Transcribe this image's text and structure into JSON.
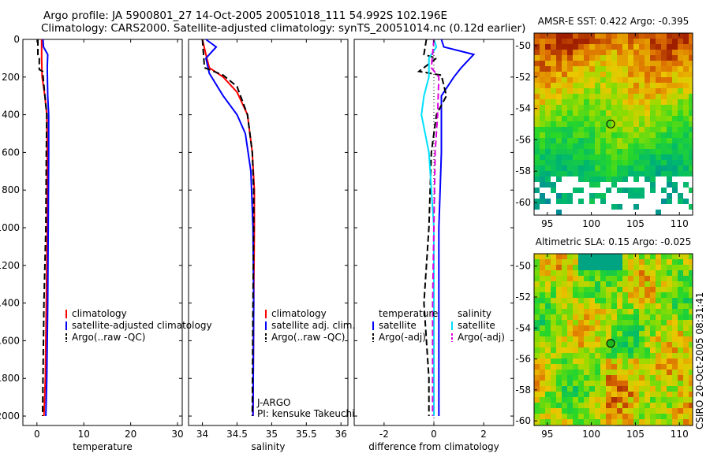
{
  "header": {
    "line1": "Argo profile: JA 5900801_27 14-Oct-2005 20051018_111 54.992S 102.196E",
    "line2": "Climatology: CARS2000. Satellite-adjusted climatology: synTS_20051014.nc (0.12d earlier)"
  },
  "side_stamp": "CSIRO 20-Oct-2005 08:31:41",
  "colors": {
    "climatology": "#ff0000",
    "satellite": "#0000ff",
    "argo": "#000000",
    "sal_satellite": "#00e0ff",
    "sal_argo": "#dd00dd"
  },
  "chart_data": [
    {
      "id": "temperature",
      "type": "line",
      "xlabel": "temperature",
      "ylabel": "",
      "xlim": [
        -3,
        31
      ],
      "ylim": [
        2050,
        0
      ],
      "xticks": [
        0,
        10,
        20,
        30
      ],
      "xtick_labels": [
        "0",
        "10",
        "20",
        "30"
      ],
      "yticks": [
        0,
        200,
        400,
        600,
        800,
        1000,
        1200,
        1400,
        1600,
        1800,
        2000
      ],
      "ytick_labels": [
        "0",
        "200",
        "400",
        "600",
        "800",
        "1000",
        "1200",
        "1400",
        "1600",
        "1800",
        "2000"
      ],
      "legend": [
        "climatology",
        "satellite-adjusted climatology",
        "Argo(..raw -QC)"
      ],
      "series": [
        {
          "name": "climatology",
          "color": "#ff0000",
          "dash": "",
          "points": [
            [
              1.0,
              0
            ],
            [
              1.0,
              100
            ],
            [
              1.1,
              200
            ],
            [
              1.7,
              300
            ],
            [
              2.1,
              400
            ],
            [
              2.2,
              600
            ],
            [
              2.2,
              1000
            ],
            [
              2.0,
              1400
            ],
            [
              1.8,
              1800
            ],
            [
              1.5,
              2000
            ]
          ]
        },
        {
          "name": "satellite-adjusted climatology",
          "color": "#0000ff",
          "dash": "",
          "points": [
            [
              1.3,
              0
            ],
            [
              1.4,
              40
            ],
            [
              2.3,
              80
            ],
            [
              2.2,
              150
            ],
            [
              2.3,
              300
            ],
            [
              2.5,
              400
            ],
            [
              2.5,
              600
            ],
            [
              2.4,
              1000
            ],
            [
              2.3,
              1400
            ],
            [
              2.1,
              1800
            ],
            [
              1.9,
              2000
            ]
          ]
        },
        {
          "name": "Argo(..raw -QC)",
          "color": "#000000",
          "dash": "8,4",
          "points": [
            [
              0.2,
              0
            ],
            [
              0.2,
              80
            ],
            [
              0.5,
              100
            ],
            [
              0.5,
              160
            ],
            [
              1.2,
              170
            ],
            [
              1.7,
              300
            ],
            [
              2.1,
              400
            ],
            [
              2.0,
              600
            ],
            [
              1.9,
              1000
            ],
            [
              1.5,
              1400
            ],
            [
              1.3,
              1800
            ],
            [
              1.2,
              2000
            ]
          ]
        }
      ]
    },
    {
      "id": "salinity",
      "type": "line",
      "xlabel": "salinity",
      "ylabel": "",
      "xlim": [
        33.8,
        36.1
      ],
      "ylim": [
        2050,
        0
      ],
      "xticks": [
        34,
        34.5,
        35,
        35.5,
        36
      ],
      "xtick_labels": [
        "34",
        "34.5",
        "35",
        "35.5",
        "36"
      ],
      "yticks": [
        0,
        200,
        400,
        600,
        800,
        1000,
        1200,
        1400,
        1600,
        1800,
        2000
      ],
      "legend": [
        "climatology",
        "satellite adj. clim.",
        "Argo(..raw -QC)"
      ],
      "annotations": [
        "J-ARGO",
        "PI: kensuke Takeuchi"
      ],
      "series": [
        {
          "name": "climatology",
          "color": "#ff0000",
          "dash": "",
          "points": [
            [
              34.0,
              0
            ],
            [
              34.05,
              80
            ],
            [
              34.1,
              150
            ],
            [
              34.3,
              200
            ],
            [
              34.5,
              280
            ],
            [
              34.65,
              400
            ],
            [
              34.72,
              600
            ],
            [
              34.75,
              800
            ],
            [
              34.75,
              1000
            ],
            [
              34.74,
              1400
            ],
            [
              34.73,
              2000
            ]
          ]
        },
        {
          "name": "satellite adj. clim.",
          "color": "#0000ff",
          "dash": "",
          "points": [
            [
              34.05,
              0
            ],
            [
              34.2,
              40
            ],
            [
              34.05,
              100
            ],
            [
              34.1,
              180
            ],
            [
              34.3,
              300
            ],
            [
              34.5,
              400
            ],
            [
              34.62,
              500
            ],
            [
              34.7,
              700
            ],
            [
              34.73,
              1000
            ],
            [
              34.74,
              1400
            ],
            [
              34.73,
              2000
            ]
          ]
        },
        {
          "name": "Argo(..raw -QC)",
          "color": "#000000",
          "dash": "8,4",
          "points": [
            [
              34.0,
              0
            ],
            [
              34.03,
              150
            ],
            [
              34.3,
              190
            ],
            [
              34.5,
              250
            ],
            [
              34.65,
              400
            ],
            [
              34.72,
              600
            ],
            [
              34.74,
              800
            ],
            [
              34.74,
              1000
            ],
            [
              34.73,
              1400
            ],
            [
              34.72,
              2000
            ]
          ]
        }
      ]
    },
    {
      "id": "difference",
      "type": "line",
      "xlabel": "difference from climatology",
      "ylabel": "",
      "xlim": [
        -3.2,
        3.2
      ],
      "ylim": [
        2050,
        0
      ],
      "xticks": [
        -2,
        0,
        2
      ],
      "xtick_labels": [
        "-2",
        "0",
        "2"
      ],
      "yticks": [
        0,
        200,
        400,
        600,
        800,
        1000,
        1200,
        1400,
        1600,
        1800,
        2000
      ],
      "legend_groups": [
        {
          "title": "temperature",
          "items": [
            "satellite",
            "Argo(-adj)"
          ]
        },
        {
          "title": "salinity",
          "items": [
            "satellite",
            "Argo(-adj)"
          ]
        }
      ],
      "series": [
        {
          "name": "temperature satellite",
          "color": "#0000ff",
          "dash": "",
          "points": [
            [
              0.3,
              0
            ],
            [
              0.4,
              40
            ],
            [
              1.6,
              80
            ],
            [
              1.1,
              150
            ],
            [
              0.8,
              200
            ],
            [
              0.3,
              300
            ],
            [
              0.3,
              600
            ],
            [
              0.2,
              1000
            ],
            [
              0.2,
              1400
            ],
            [
              0.2,
              1800
            ],
            [
              0.2,
              2000
            ]
          ]
        },
        {
          "name": "temperature Argo(-adj)",
          "color": "#000000",
          "dash": "8,4",
          "points": [
            [
              -0.3,
              0
            ],
            [
              -0.4,
              80
            ],
            [
              0.1,
              100
            ],
            [
              -0.6,
              170
            ],
            [
              0.3,
              190
            ],
            [
              0.5,
              300
            ],
            [
              0.1,
              400
            ],
            [
              -0.1,
              600
            ],
            [
              -0.2,
              1000
            ],
            [
              -0.4,
              1400
            ],
            [
              -0.2,
              1800
            ],
            [
              -0.2,
              2000
            ]
          ]
        },
        {
          "name": "salinity satellite",
          "color": "#00e0ff",
          "dash": "",
          "points": [
            [
              0.0,
              0
            ],
            [
              0.1,
              40
            ],
            [
              -0.2,
              100
            ],
            [
              -0.2,
              200
            ],
            [
              -0.4,
              300
            ],
            [
              -0.5,
              400
            ],
            [
              -0.2,
              600
            ],
            [
              0.0,
              1000
            ],
            [
              0.0,
              1400
            ],
            [
              0.0,
              2000
            ]
          ]
        },
        {
          "name": "salinity Argo(-adj)",
          "color": "#dd00dd",
          "dash": "8,4",
          "points": [
            [
              0.0,
              0
            ],
            [
              -0.1,
              150
            ],
            [
              0.2,
              200
            ],
            [
              0.15,
              400
            ],
            [
              0.05,
              600
            ],
            [
              0.0,
              1000
            ],
            [
              -0.05,
              1400
            ],
            [
              -0.05,
              2000
            ]
          ]
        }
      ]
    },
    {
      "id": "sst-map",
      "type": "heatmap",
      "title": "AMSR-E SST: 0.422 Argo: -0.395",
      "xlim": [
        93.5,
        111.5
      ],
      "ylim": [
        -60.8,
        -49.2
      ],
      "xticks": [
        95,
        100,
        105,
        110
      ],
      "xtick_labels": [
        "95",
        "100",
        "105",
        "110"
      ],
      "yticks": [
        -50,
        -52,
        -54,
        -56,
        -58,
        -60
      ],
      "ytick_labels": [
        "-50",
        "-52",
        "-54",
        "-56",
        "-58",
        "-60"
      ],
      "marker": {
        "lon": 102.196,
        "lat": -54.992
      }
    },
    {
      "id": "sla-map",
      "type": "heatmap",
      "title": "Altimetric SLA: 0.15 Argo: -0.025",
      "xlim": [
        93.5,
        111.5
      ],
      "ylim": [
        -60.3,
        -49.2
      ],
      "xticks": [
        95,
        100,
        105,
        110
      ],
      "xtick_labels": [
        "95",
        "100",
        "105",
        "110"
      ],
      "yticks": [
        -50,
        -52,
        -54,
        -56,
        -58,
        -60
      ],
      "ytick_labels": [
        "-50",
        "-52",
        "-54",
        "-56",
        "-58",
        "-60"
      ],
      "marker": {
        "lon": 102.196,
        "lat": -54.992
      }
    }
  ]
}
